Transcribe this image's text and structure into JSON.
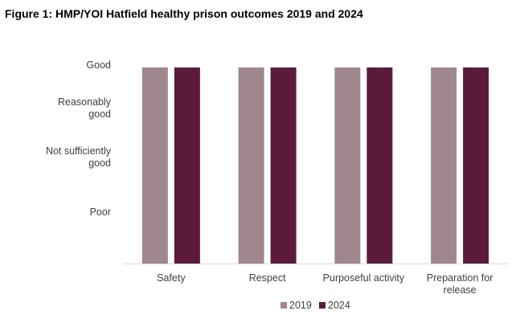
{
  "chart_data": {
    "type": "bar",
    "title": "Figure 1: HMP/YOI Hatfield healthy prison outcomes 2019 and 2024",
    "categories": [
      [
        "Safety"
      ],
      [
        "Respect"
      ],
      [
        "Purposeful activity"
      ],
      [
        "Preparation for",
        "release"
      ]
    ],
    "category_names": [
      "Safety",
      "Respect",
      "Purposeful activity",
      "Preparation for release"
    ],
    "y_levels": [
      [
        "Poor"
      ],
      [
        "Not sufficiently",
        "good"
      ],
      [
        "Reasonably",
        "good"
      ],
      [
        "Good"
      ]
    ],
    "ylim": [
      0,
      4
    ],
    "series": [
      {
        "name": "2019",
        "color": "#a0868d",
        "values": [
          4,
          4,
          4,
          4
        ]
      },
      {
        "name": "2024",
        "color": "#5c1a3a",
        "values": [
          4,
          4,
          4,
          4
        ]
      }
    ],
    "xlabel": "",
    "ylabel": "",
    "grid": false,
    "legend": "bottom"
  }
}
